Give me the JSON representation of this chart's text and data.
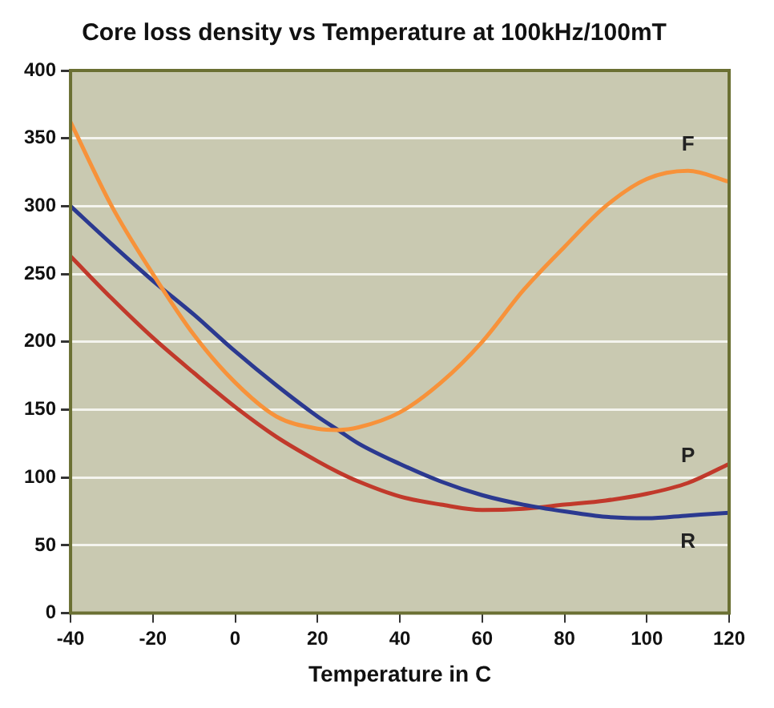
{
  "chart_data": {
    "type": "line",
    "title": "Core loss density vs Temperature at 100kHz/100mT",
    "xlabel": "Temperature in C",
    "x": [
      -40,
      -30,
      -20,
      -10,
      0,
      10,
      20,
      25,
      30,
      40,
      50,
      60,
      70,
      80,
      90,
      100,
      110,
      120
    ],
    "series": [
      {
        "name": "F",
        "color": "#f7923a",
        "values": [
          362,
          300,
          250,
          205,
          170,
          145,
          136,
          135,
          137,
          148,
          170,
          200,
          238,
          270,
          300,
          320,
          326,
          318
        ]
      },
      {
        "name": "R",
        "color": "#2b3990",
        "values": [
          300,
          272,
          245,
          220,
          193,
          168,
          145,
          135,
          125,
          110,
          97,
          87,
          80,
          75,
          71,
          70,
          72,
          74
        ]
      },
      {
        "name": "P",
        "color": "#c1392b",
        "values": [
          263,
          232,
          203,
          177,
          152,
          130,
          112,
          104,
          97,
          86,
          80,
          76,
          77,
          80,
          83,
          88,
          96,
          110
        ]
      }
    ],
    "xlim": [
      -40,
      120
    ],
    "xticks": [
      -40,
      -20,
      0,
      20,
      40,
      60,
      80,
      100,
      120
    ],
    "ylim": [
      0,
      400
    ],
    "yticks": [
      0,
      50,
      100,
      150,
      200,
      250,
      300,
      350,
      400
    ],
    "grid": "y",
    "legend": false,
    "marker": "none",
    "line_style": "solid"
  }
}
